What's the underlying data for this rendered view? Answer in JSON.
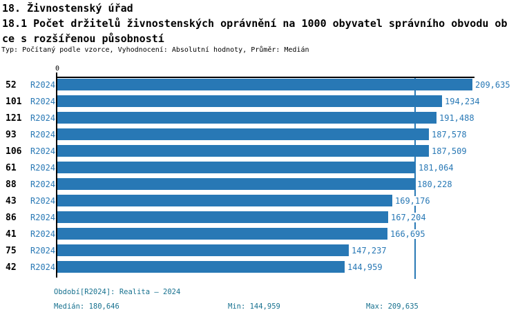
{
  "header": {
    "title": "18. Živnostenský úřad",
    "subtitle_line1": "18.1 Počet držitelů živnostenských oprávnění na 1000 obyvatel správního obvodu ob",
    "subtitle_line2": "ce s rozšířenou působností",
    "meta": "Typ: Počítaný podle vzorce, Vyhodnocení: Absolutní hodnoty, Průměr: Medián"
  },
  "chart_data": {
    "type": "bar",
    "orientation": "horizontal",
    "title": "18.1 Počet držitelů živnostenských oprávnění na 1000 obyvatel správního obvodu obce s rozšířenou působností",
    "zero_label": "0",
    "axis_range": [
      0,
      209.635
    ],
    "period": "R2024",
    "categories": [
      "52",
      "101",
      "121",
      "93",
      "106",
      "61",
      "88",
      "43",
      "86",
      "41",
      "75",
      "42"
    ],
    "series": [
      {
        "name": "R2024",
        "values": [
          209.635,
          194.234,
          191.488,
          187.578,
          187.509,
          181.064,
          180.228,
          169.176,
          167.204,
          166.695,
          147.237,
          144.959
        ],
        "display": [
          "209,635",
          "194,234",
          "191,488",
          "187,578",
          "187,509",
          "181,064",
          "180,228",
          "169,176",
          "167,204",
          "166,695",
          "147,237",
          "144,959"
        ]
      }
    ],
    "median": 180.646,
    "min": 144.959,
    "max": 209.635,
    "legend_position": "none",
    "grid": false,
    "bar_color": "#2878b5",
    "label_color": "#2878b5",
    "median_line_color": "#2878b5",
    "footer_color": "#17718f"
  },
  "footer": {
    "period_note": "Období[R2024]: Realita – 2024",
    "median_label": "Medián: 180,646",
    "min_label": "Min: 144,959",
    "max_label": "Max: 209,635"
  }
}
